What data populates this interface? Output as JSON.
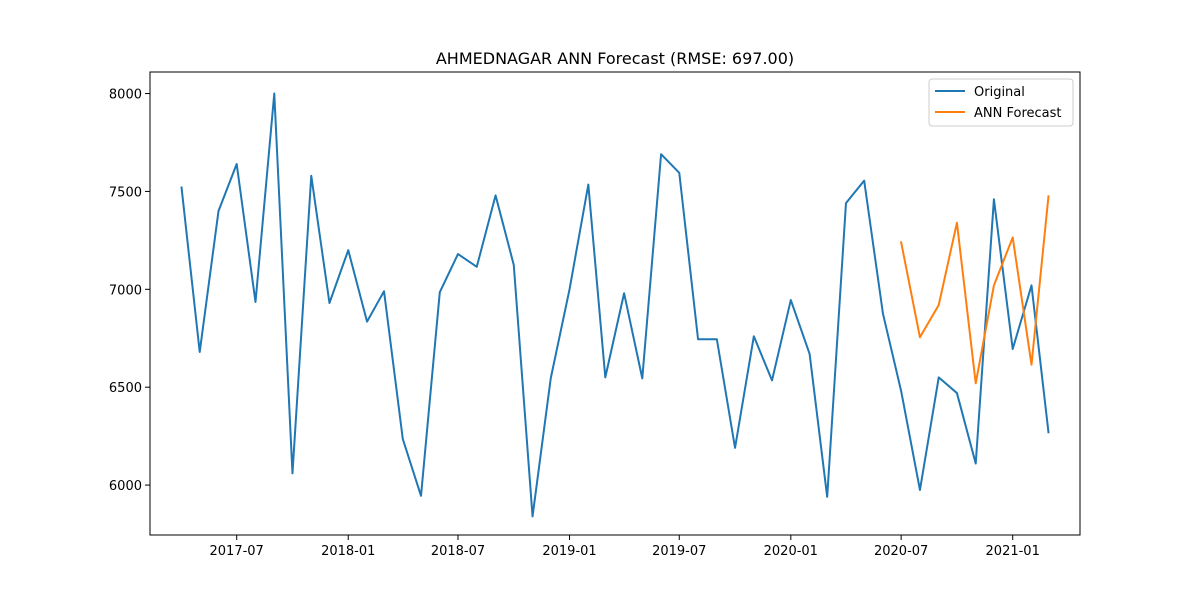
{
  "chart_data": {
    "type": "line",
    "title": "AHMEDNAGAR ANN Forecast (RMSE: 697.00)",
    "xlabel": "",
    "ylabel": "",
    "x_axis_type": "date",
    "xlim": [
      "2017-02-08",
      "2021-04-22"
    ],
    "ylim": [
      5745,
      8110
    ],
    "x_ticks": [
      {
        "date": "2017-07-01",
        "label": "2017-07"
      },
      {
        "date": "2018-01-01",
        "label": "2018-01"
      },
      {
        "date": "2018-07-01",
        "label": "2018-07"
      },
      {
        "date": "2019-01-01",
        "label": "2019-01"
      },
      {
        "date": "2019-07-01",
        "label": "2019-07"
      },
      {
        "date": "2020-01-01",
        "label": "2020-01"
      },
      {
        "date": "2020-07-01",
        "label": "2020-07"
      },
      {
        "date": "2021-01-01",
        "label": "2021-01"
      }
    ],
    "y_ticks": [
      6000,
      6500,
      7000,
      7500,
      8000
    ],
    "grid": false,
    "legend_position": "upper right",
    "series": [
      {
        "name": "Original",
        "color": "#1f77b4",
        "x": [
          "2017-04-01",
          "2017-05-01",
          "2017-06-01",
          "2017-07-01",
          "2017-08-01",
          "2017-09-01",
          "2017-10-01",
          "2017-11-01",
          "2017-12-01",
          "2018-01-01",
          "2018-02-01",
          "2018-03-01",
          "2018-04-01",
          "2018-05-01",
          "2018-06-01",
          "2018-07-01",
          "2018-08-01",
          "2018-09-01",
          "2018-10-01",
          "2018-11-01",
          "2018-12-01",
          "2019-01-01",
          "2019-02-01",
          "2019-03-01",
          "2019-04-01",
          "2019-05-01",
          "2019-06-01",
          "2019-07-01",
          "2019-08-01",
          "2019-09-01",
          "2019-10-01",
          "2019-11-01",
          "2019-12-01",
          "2020-01-01",
          "2020-02-01",
          "2020-03-01",
          "2020-04-01",
          "2020-05-01",
          "2020-06-01",
          "2020-07-01",
          "2020-08-01",
          "2020-09-01",
          "2020-10-01",
          "2020-11-01",
          "2020-12-01",
          "2021-01-01",
          "2021-02-01",
          "2021-03-01"
        ],
        "y": [
          7520,
          6680,
          7400,
          7640,
          6935,
          8000,
          6060,
          7580,
          6930,
          7200,
          6835,
          6990,
          6235,
          5945,
          6985,
          7180,
          7115,
          7480,
          7125,
          5840,
          6545,
          7000,
          7535,
          6550,
          6980,
          6545,
          7690,
          7595,
          6745,
          6745,
          6190,
          6760,
          6535,
          6945,
          6670,
          5940,
          7440,
          7555,
          6875,
          6480,
          5975,
          6550,
          6470,
          6110,
          7460,
          6695,
          7020,
          6270
        ]
      },
      {
        "name": "ANN Forecast",
        "color": "#ff7f0e",
        "x": [
          "2020-07-01",
          "2020-08-01",
          "2020-09-01",
          "2020-10-01",
          "2020-11-01",
          "2020-12-01",
          "2021-01-01",
          "2021-02-01",
          "2021-03-01"
        ],
        "y": [
          7240,
          6755,
          6920,
          7340,
          6520,
          7020,
          7265,
          6615,
          7475
        ]
      }
    ]
  }
}
